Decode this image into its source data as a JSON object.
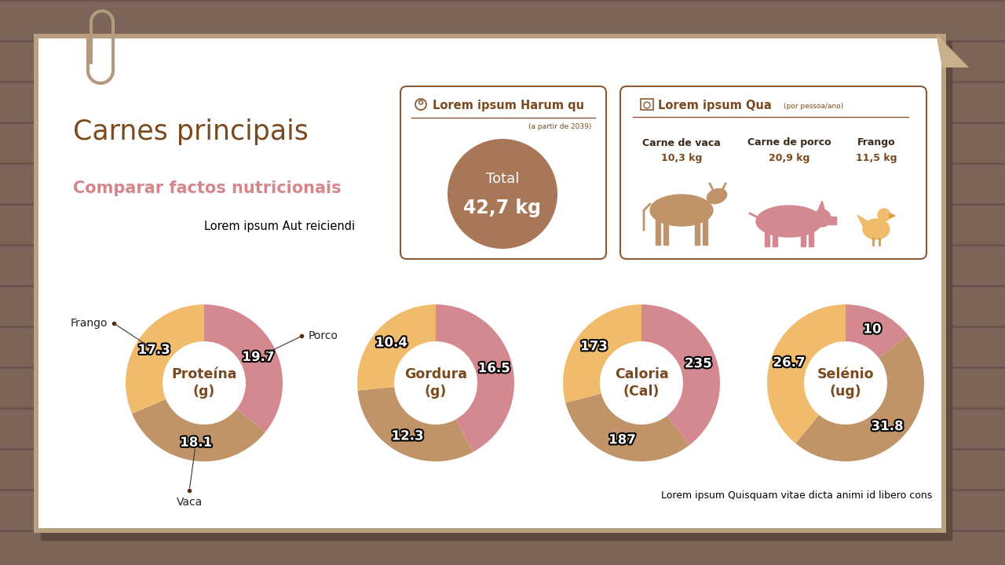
{
  "header": {
    "title": "Carnes principais",
    "subtitle": "Comparar factos nutricionais",
    "text": "Lorem ipsum Aut reiciendi"
  },
  "total_box": {
    "title": "Lorem ipsum Harum qu",
    "note": "(a partir de 2039)",
    "label": "Total",
    "value": "42,7 kg"
  },
  "consumption_box": {
    "title": "Lorem ipsum Qua",
    "note": "(por pessoa/ano)",
    "items": [
      {
        "name": "Carne de vaca",
        "amount": "10,3 kg"
      },
      {
        "name": "Carne de porco",
        "amount": "20,9 kg"
      },
      {
        "name": "Frango",
        "amount": "11,5 kg"
      }
    ]
  },
  "chart_data": [
    {
      "type": "donut",
      "title": "Proteína\n(g)",
      "categories": [
        "Porco",
        "Vaca",
        "Frango"
      ],
      "values": [
        19.7,
        18.1,
        17.3
      ],
      "colors": [
        "#d4888f",
        "#c09468",
        "#f0bb6b"
      ],
      "data_labels": true
    },
    {
      "type": "donut",
      "title": "Gordura\n(g)",
      "categories": [
        null,
        null,
        null
      ],
      "values": [
        16.5,
        12.3,
        10.4
      ],
      "colors": [
        "#d4888f",
        "#c09468",
        "#f0bb6b"
      ],
      "data_labels": true
    },
    {
      "type": "donut",
      "title": "Caloria\n(Cal)",
      "categories": [
        null,
        null,
        null
      ],
      "values": [
        235,
        187,
        173
      ],
      "colors": [
        "#d4888f",
        "#c09468",
        "#f0bb6b"
      ],
      "data_labels": true
    },
    {
      "type": "donut",
      "title": "Selénio\n(ug)",
      "categories": [
        null,
        null,
        null
      ],
      "values": [
        10,
        31.8,
        26.7
      ],
      "colors": [
        "#d4888f",
        "#c09468",
        "#f0bb6b"
      ],
      "data_labels": true
    }
  ],
  "footer": "Lorem ipsum Quisquam vitae dicta animi id libero cons"
}
